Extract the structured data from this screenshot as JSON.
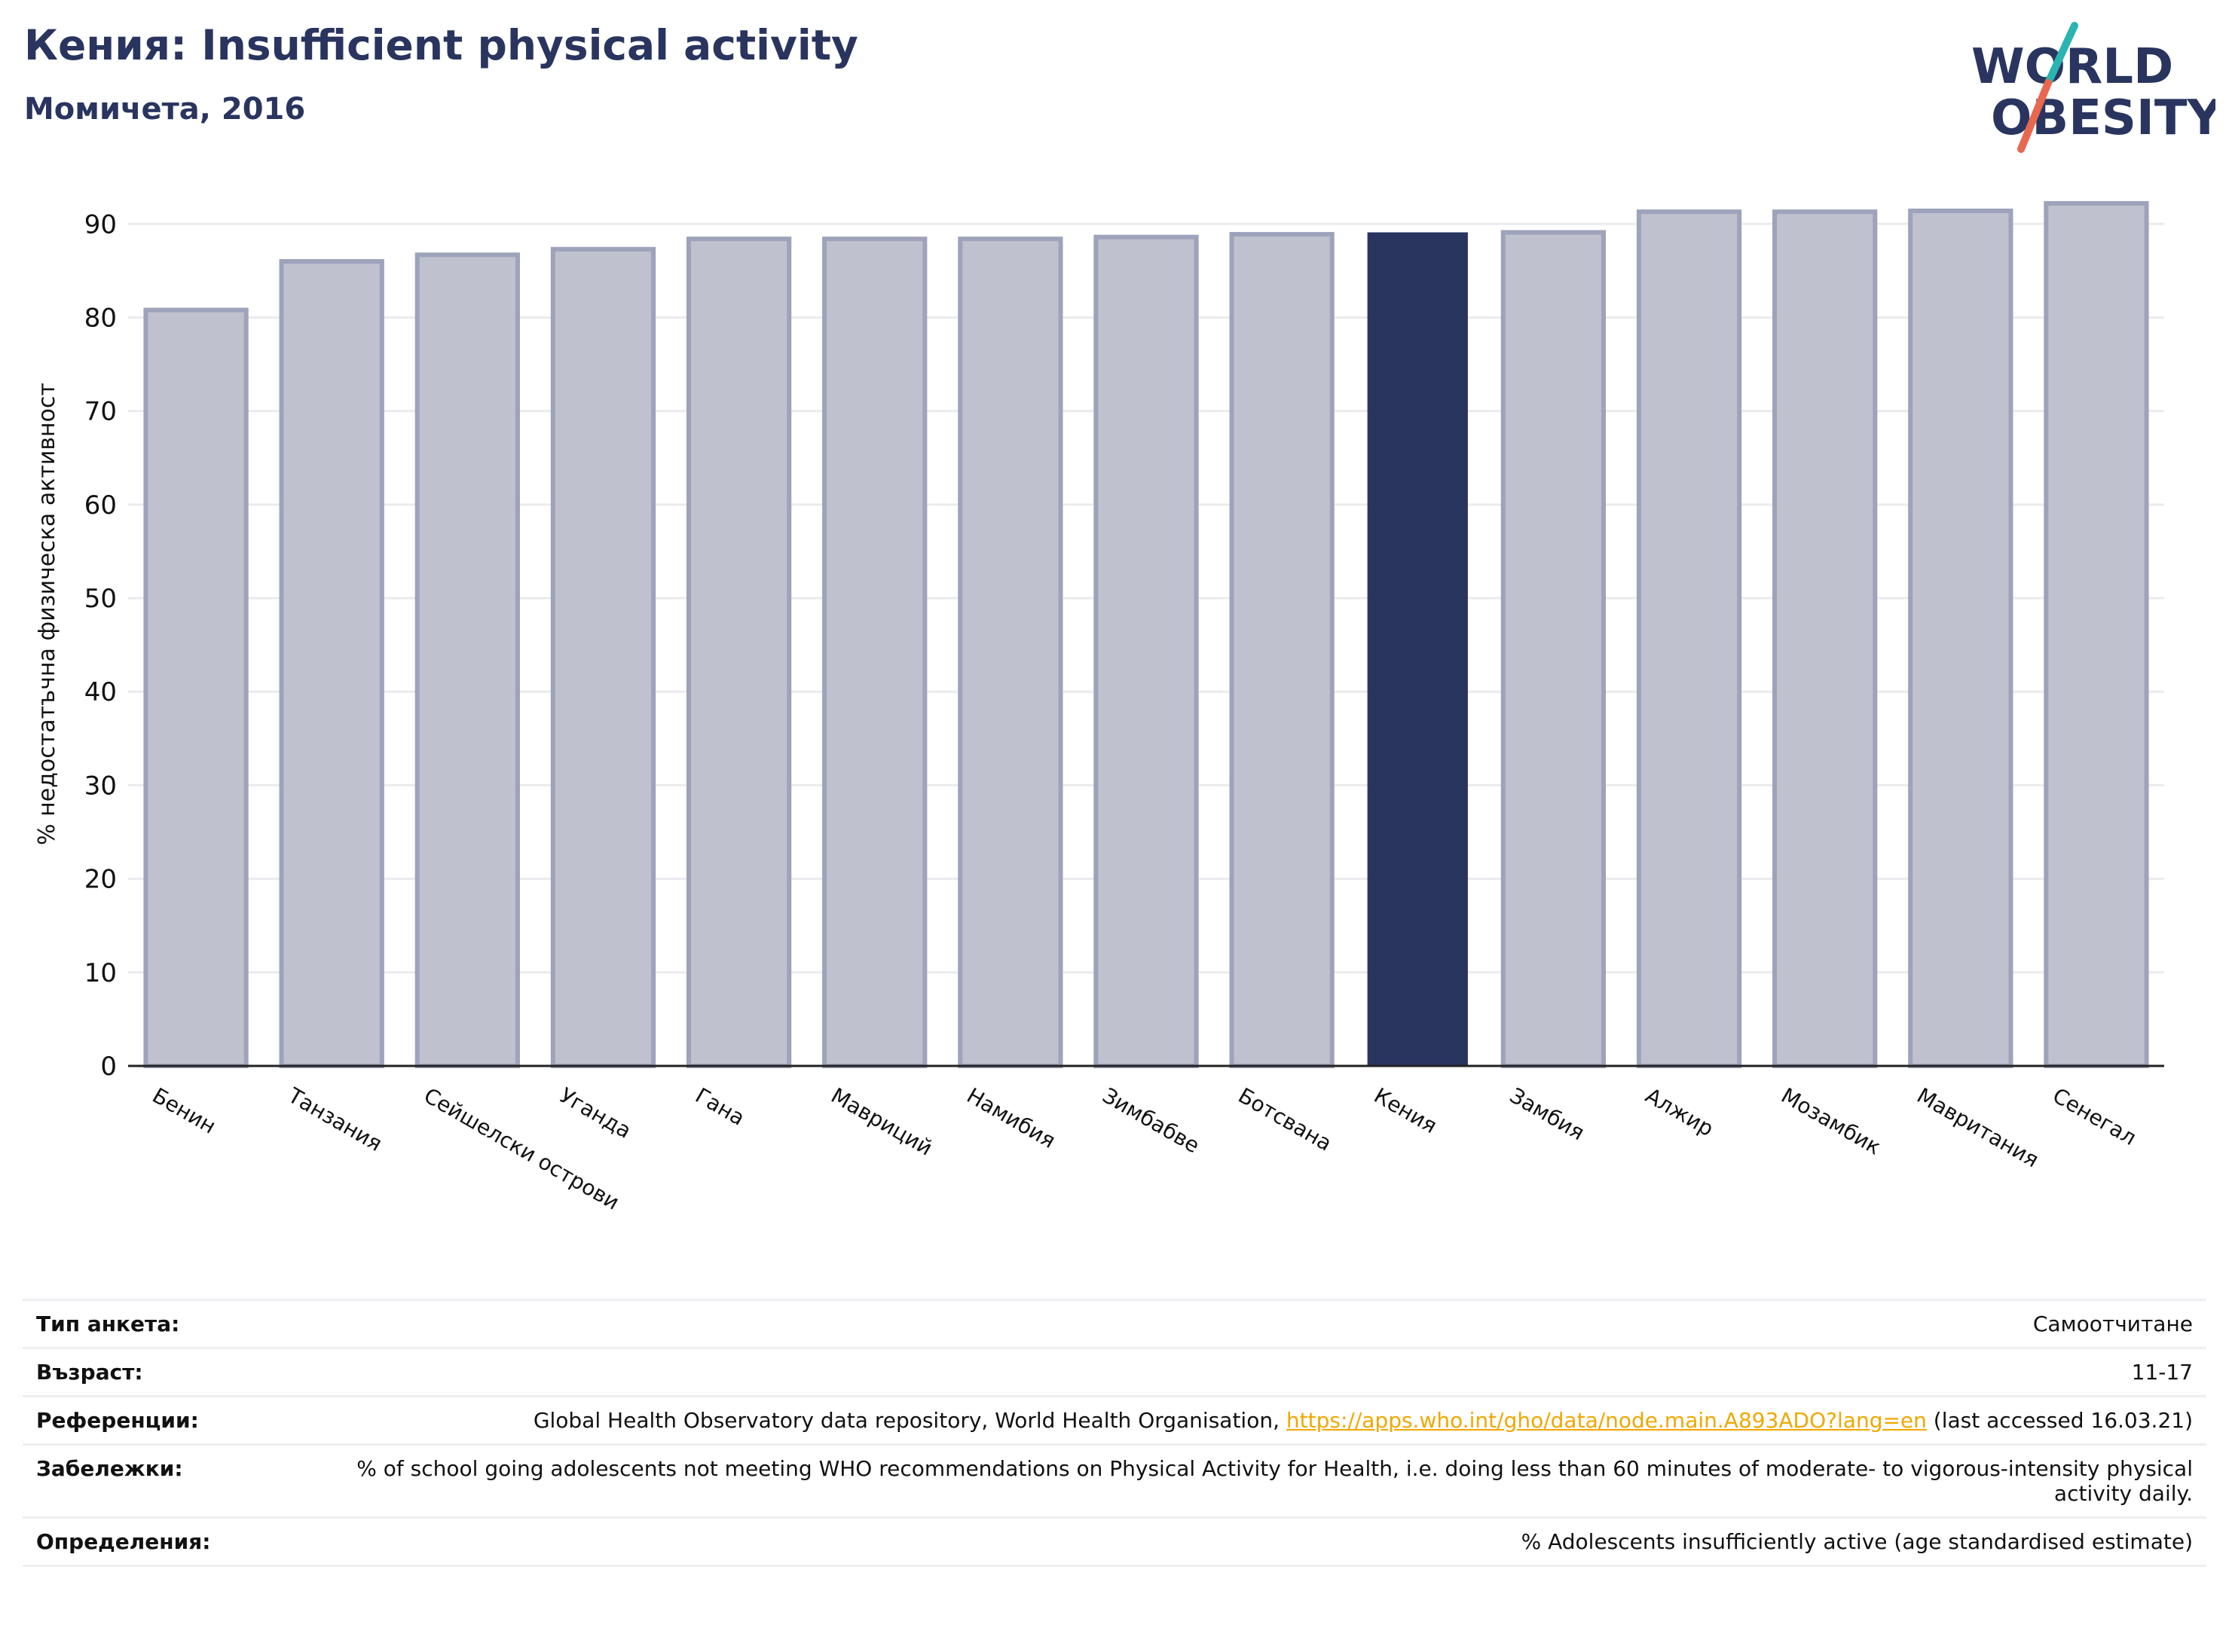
{
  "header": {
    "title": "Кения: Insufficient physical activity",
    "subtitle": "Момичета, 2016"
  },
  "logo": {
    "line1": "WORLD",
    "line2": "OBESITY",
    "colors": {
      "text": "#29355f",
      "slash_teal": "#2ab3b1",
      "slash_red": "#e8674f"
    }
  },
  "chart_data": {
    "type": "bar",
    "categories": [
      "Бенин",
      "Танзания",
      "Сейшелски острови",
      "Уганда",
      "Гана",
      "Мавриций",
      "Намибия",
      "Зимбабве",
      "Ботсвана",
      "Кения",
      "Замбия",
      "Алжир",
      "Мозамбик",
      "Мавритания",
      "Сенегал"
    ],
    "values": [
      80.8,
      86.0,
      86.7,
      87.3,
      88.4,
      88.4,
      88.4,
      88.6,
      88.9,
      89.1,
      89.1,
      91.3,
      91.3,
      91.4,
      92.2
    ],
    "highlight": "Кения",
    "title": "Кения: Insufficient physical activity",
    "xlabel": "",
    "ylabel": "% недостатъчна физическа активност",
    "ylim": [
      0,
      93
    ],
    "yticks": [
      0,
      10,
      20,
      30,
      40,
      50,
      60,
      70,
      80,
      90
    ],
    "grid": true,
    "colors": {
      "bar": "#bfc1ce",
      "bar_edge": "#9ea3bb",
      "highlight": "#29355f",
      "grid": "#ebebef",
      "axis": "#222222"
    }
  },
  "info": [
    {
      "label": "Тип анкета:",
      "value": "Самоотчитане"
    },
    {
      "label": "Възраст:",
      "value": "11-17"
    },
    {
      "label": "Референции:",
      "value_before": "Global Health Observatory data repository, World Health Organisation, ",
      "link": "https://apps.who.int/gho/data/node.main.A893ADO?lang=en",
      "value_after": " (last accessed 16.03.21)"
    },
    {
      "label": "Забележки:",
      "value": "% of school going adolescents not meeting WHO recommendations on Physical Activity for Health, i.e. doing less than 60 minutes of moderate- to vigorous-intensity physical activity daily."
    },
    {
      "label": "Определения:",
      "value": "% Adolescents insufficiently active (age standardised estimate)"
    }
  ]
}
